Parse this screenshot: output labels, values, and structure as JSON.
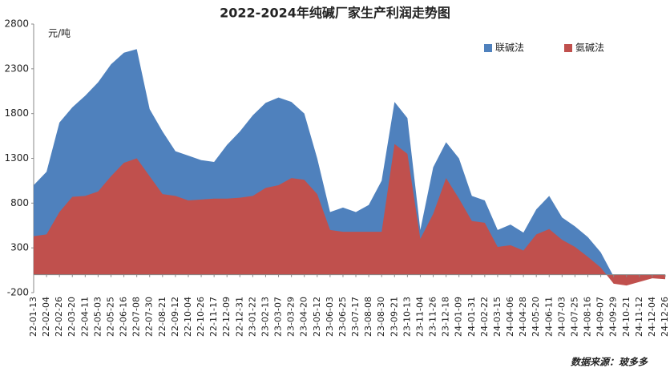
{
  "chart_data": {
    "type": "area",
    "title": "2022-2024年纯碱厂家生产利润走势图",
    "y_label": "元/吨",
    "source": "数据来源：玻多多",
    "categories": [
      "22-01-13",
      "22-02-04",
      "22-02-26",
      "22-03-20",
      "22-04-11",
      "22-05-03",
      "22-05-25",
      "22-06-16",
      "22-07-08",
      "22-07-30",
      "22-08-21",
      "22-09-12",
      "22-10-04",
      "22-10-26",
      "22-11-17",
      "22-12-09",
      "22-12-31",
      "23-01-22",
      "23-02-13",
      "23-03-07",
      "23-03-29",
      "23-04-20",
      "23-05-12",
      "23-06-03",
      "23-06-25",
      "23-07-17",
      "23-08-08",
      "23-08-30",
      "23-09-21",
      "23-10-13",
      "23-11-04",
      "23-11-26",
      "23-12-18",
      "24-01-09",
      "24-01-31",
      "24-02-22",
      "24-03-15",
      "24-04-06",
      "24-04-28",
      "24-05-20",
      "24-06-11",
      "24-07-03",
      "24-07-25",
      "24-08-16",
      "24-09-07",
      "24-09-29",
      "24-10-21",
      "24-11-12",
      "24-12-04",
      "24-12-26"
    ],
    "series": [
      {
        "name": "联碱法",
        "color": "#4f81bd",
        "values": [
          1000,
          1150,
          1700,
          1870,
          2000,
          2150,
          2350,
          2480,
          2520,
          1850,
          1600,
          1380,
          1330,
          1280,
          1260,
          1450,
          1600,
          1780,
          1920,
          1980,
          1930,
          1800,
          1300,
          700,
          750,
          700,
          780,
          1050,
          1930,
          1750,
          500,
          1200,
          1480,
          1300,
          880,
          830,
          500,
          560,
          470,
          730,
          880,
          640,
          540,
          420,
          250,
          -20,
          -50,
          -40,
          -30,
          -40
        ]
      },
      {
        "name": "氨碱法",
        "color": "#c0504d",
        "values": [
          430,
          450,
          700,
          870,
          880,
          930,
          1100,
          1250,
          1300,
          1100,
          900,
          880,
          830,
          840,
          850,
          850,
          860,
          880,
          970,
          1000,
          1080,
          1060,
          900,
          500,
          480,
          480,
          480,
          480,
          1460,
          1350,
          400,
          680,
          1080,
          850,
          600,
          580,
          310,
          330,
          270,
          450,
          510,
          390,
          310,
          200,
          80,
          -100,
          -120,
          -80,
          -40,
          -50
        ]
      }
    ],
    "ylim": [
      -200,
      2800
    ],
    "yticks": [
      -200,
      300,
      800,
      1300,
      1800,
      2300,
      2800
    ],
    "legend": "upper right"
  }
}
